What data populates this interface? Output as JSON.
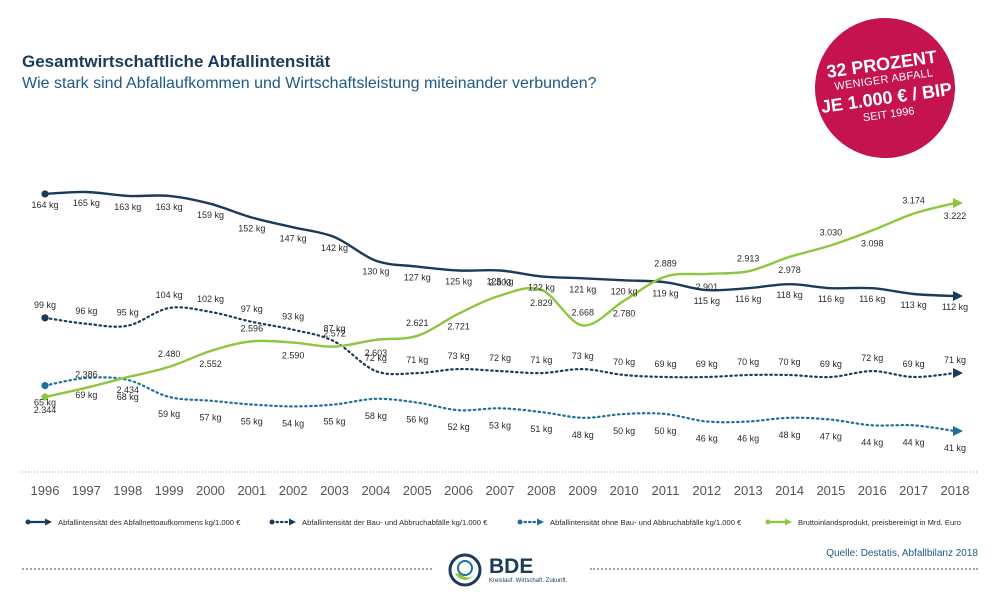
{
  "header": {
    "title": "Gesamtwirtschaftliche Abfallintensität",
    "subtitle": "Wie stark sind Abfallaufkommen und Wirtschaftsleistung miteinander verbunden?"
  },
  "badge": {
    "line1": "32 PROZENT",
    "line2": "WENIGER ABFALL",
    "line3": "JE 1.000 € / BIP",
    "line4": "SEIT 1996",
    "color": "#c4134f"
  },
  "footer": {
    "source": "Quelle: Destatis, Abfallbilanz 2018",
    "logo_name": "BDE",
    "logo_tagline": "Kreislauf. Wirtschaft. Zukunft."
  },
  "chart_data": {
    "type": "line",
    "x": [
      "1996",
      "1997",
      "1998",
      "1999",
      "2000",
      "2001",
      "2002",
      "2003",
      "2004",
      "2005",
      "2006",
      "2007",
      "2008",
      "2009",
      "2010",
      "2011",
      "2012",
      "2013",
      "2014",
      "2015",
      "2016",
      "2017",
      "2018"
    ],
    "series": [
      {
        "name": "Abfallintensität des Abfallnettoaufkommens kg/1.000 €",
        "style": "solid",
        "color": "#1b3b5a",
        "values": [
          164,
          165,
          163,
          163,
          159,
          152,
          147,
          142,
          130,
          127,
          125,
          125,
          122,
          121,
          120,
          119,
          115,
          116,
          118,
          116,
          116,
          113,
          112
        ],
        "labels": [
          "164 kg",
          "165 kg",
          "163 kg",
          "163 kg",
          "159 kg",
          "152 kg",
          "147 kg",
          "142 kg",
          "130 kg",
          "127 kg",
          "125 kg",
          "125 kg",
          "122 kg",
          "121 kg",
          "120 kg",
          "119 kg",
          "115 kg",
          "116 kg",
          "118 kg",
          "116 kg",
          "116 kg",
          "113 kg",
          "112 kg"
        ]
      },
      {
        "name": "Abfallintensität der Bau- und Abbruchabfälle kg/1.000 €",
        "style": "dotted",
        "color": "#1b3b5a",
        "values": [
          99,
          96,
          95,
          104,
          102,
          97,
          93,
          87,
          72,
          71,
          73,
          72,
          71,
          73,
          70,
          69,
          69,
          70,
          70,
          69,
          72,
          69,
          71
        ],
        "labels": [
          "99 kg",
          "96 kg",
          "95 kg",
          "104 kg",
          "102 kg",
          "97 kg",
          "93 kg",
          "87 kg",
          "72 kg",
          "71 kg",
          "73 kg",
          "72 kg",
          "71 kg",
          "73 kg",
          "70 kg",
          "69 kg",
          "69 kg",
          "70 kg",
          "70 kg",
          "69 kg",
          "72 kg",
          "69 kg",
          "71 kg"
        ]
      },
      {
        "name": "Abfallintensität ohne Bau- und Abbruchabfälle kg/1.000 €",
        "style": "dotted",
        "color": "#1e6f99",
        "values": [
          65,
          69,
          68,
          59,
          57,
          55,
          54,
          55,
          58,
          56,
          52,
          53,
          51,
          48,
          50,
          50,
          46,
          46,
          48,
          47,
          44,
          44,
          41
        ],
        "labels": [
          "65 kg",
          "69 kg",
          "68 kg",
          "59 kg",
          "57 kg",
          "55 kg",
          "54 kg",
          "55 kg",
          "58 kg",
          "56 kg",
          "52 kg",
          "53 kg",
          "51 kg",
          "48 kg",
          "50 kg",
          "50 kg",
          "46 kg",
          "46 kg",
          "48 kg",
          "47 kg",
          "44 kg",
          "44 kg",
          "41 kg"
        ]
      },
      {
        "name": "Bruttoinlandsprodukt, preisbereinigt in Mrd. Euro",
        "style": "solid",
        "color": "#8dc63f",
        "values": [
          2344,
          2386,
          2434,
          2480,
          2552,
          2596,
          2590,
          2572,
          2603,
          2621,
          2721,
          2803,
          2829,
          2668,
          2780,
          2889,
          2901,
          2913,
          2978,
          3030,
          3098,
          3174,
          3222
        ],
        "labels": [
          "2.344",
          "2.386",
          "2.434",
          "2.480",
          "2.552",
          "2.596",
          "2.590",
          "2.572",
          "2.603",
          "2.621",
          "2.721",
          "2.803",
          "2.829",
          "2.668",
          "2.780",
          "2.889",
          "2.901",
          "2.913",
          "2.978",
          "3.030",
          "3.098",
          "3.174",
          "3.222"
        ]
      }
    ],
    "legend": [
      "Abfallintensität des Abfallnettoaufkommens kg/1.000 €",
      "Abfallintensität der Bau- und Abbruchabfälle kg/1.000 €",
      "Abfallintensität ohne Bau- und Abbruchabfälle kg/1.000 €",
      "Bruttoinlandsprodukt, preisbereinigt in Mrd. Euro"
    ],
    "legend_position": "bottom",
    "grid": false
  }
}
